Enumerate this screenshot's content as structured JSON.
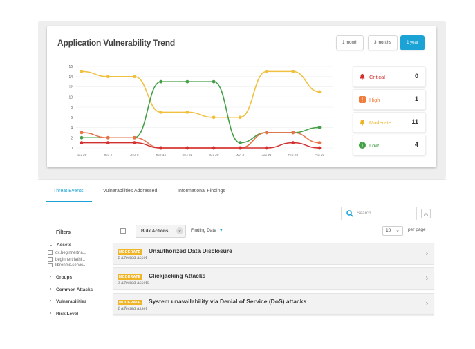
{
  "chart_card": {
    "title": "Application Vulnerability Trend",
    "ranges": [
      "1 month",
      "3 months",
      "1 year"
    ],
    "active_range": "1 year"
  },
  "chart_data": {
    "type": "line",
    "categories": [
      "Nov 28",
      "Dec 1",
      "Dec 8",
      "Dec 16",
      "Dec 22",
      "Dec 28",
      "Jan 3",
      "Jan 21",
      "Feb 23",
      "Feb 23"
    ],
    "y_ticks": [
      0,
      2,
      4,
      6,
      8,
      10,
      12,
      14,
      16
    ],
    "ylim": [
      0,
      16
    ],
    "series": [
      {
        "name": "Moderate",
        "color": "#f0c040",
        "values": [
          15,
          14,
          14,
          7,
          7,
          6,
          6,
          15,
          15,
          11
        ]
      },
      {
        "name": "Low",
        "color": "#43a047",
        "values": [
          2,
          2,
          2,
          13,
          13,
          13,
          1,
          3,
          3,
          4
        ]
      },
      {
        "name": "High",
        "color": "#e8734a",
        "values": [
          3,
          2,
          2,
          0,
          0,
          0,
          0,
          3,
          3,
          1
        ]
      },
      {
        "name": "Critical",
        "color": "#d32f2f",
        "values": [
          1,
          1,
          1,
          0,
          0,
          0,
          0,
          0,
          1,
          0
        ]
      }
    ],
    "grid": true
  },
  "severity": [
    {
      "label": "Critical",
      "count": "0",
      "color": "#d32f2f",
      "icon": "bell-icon"
    },
    {
      "label": "High",
      "count": "1",
      "color": "#ef7d3c",
      "icon": "alert-square-icon"
    },
    {
      "label": "Moderate",
      "count": "11",
      "color": "#f0b429",
      "icon": "bell-icon"
    },
    {
      "label": "Low",
      "count": "4",
      "color": "#43a047",
      "icon": "info-circle-icon"
    }
  ],
  "tabs": [
    "Threat Events",
    "Vulnerabilities Addressed",
    "Informational Findings"
  ],
  "search": {
    "placeholder": "Search"
  },
  "filters": {
    "title": "Filters",
    "assets_label": "Assets",
    "assets": [
      "ox.beginnertria...",
      "beginnertriathl...",
      "librenms.servic..."
    ],
    "groups": [
      "Groups",
      "Common Attacks",
      "Vulnerabilities",
      "Risk Level"
    ]
  },
  "toolbar": {
    "bulk_actions": "Bulk Actions",
    "sort_label": "Finding Date",
    "per_page_value": "10",
    "per_page_label": "per page"
  },
  "findings": [
    {
      "badge": "MODERATE",
      "title": "Unauthorized Data Disclosure",
      "sub": "1 affected asset"
    },
    {
      "badge": "MODERATE",
      "title": "Clickjacking Attacks",
      "sub": "2 affected assets"
    },
    {
      "badge": "MODERATE",
      "title": "System unavailability via Denial of Service (DoS) attacks",
      "sub": "1 affected asset"
    }
  ]
}
